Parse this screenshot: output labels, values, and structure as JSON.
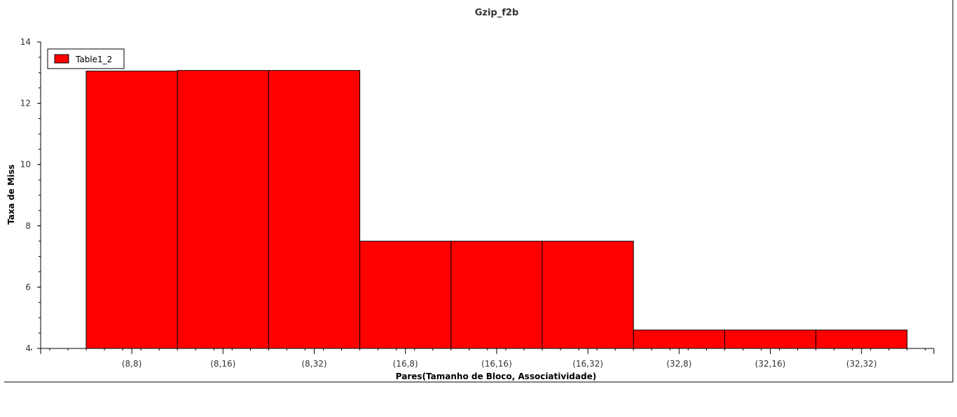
{
  "chart_data": {
    "type": "bar",
    "title": "Gzip_f2b",
    "xlabel": "Pares(Tamanho de Bloco, Associatividade)",
    "ylabel": "Taxa de Miss",
    "categories": [
      "(8,8)",
      "(8,16)",
      "(8,32)",
      "(16,8)",
      "(16,16)",
      "(16,32)",
      "(32,8)",
      "(32,16)",
      "(32,32)"
    ],
    "series": [
      {
        "name": "Table1_2",
        "color": "#ff0000",
        "values": [
          13.05,
          13.07,
          13.07,
          7.5,
          7.5,
          7.5,
          4.6,
          4.6,
          4.6
        ]
      }
    ],
    "ylim": [
      4,
      14
    ],
    "yticks": [
      4,
      6,
      8,
      10,
      12,
      14
    ],
    "grid": false,
    "legend_position": "top-left"
  }
}
